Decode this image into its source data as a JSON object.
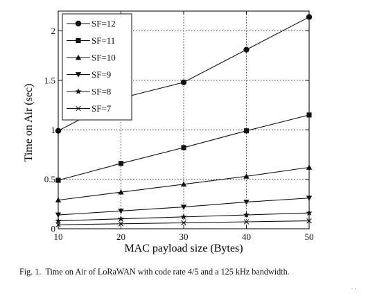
{
  "chart_data": {
    "type": "line",
    "xlabel": "MAC payload size (Bytes)",
    "ylabel": "Time on Air (sec)",
    "x": [
      10,
      20,
      30,
      40,
      50
    ],
    "xlim": [
      10,
      50
    ],
    "ylim": [
      0,
      2.2
    ],
    "xticks": [
      "10",
      "20",
      "30",
      "40",
      "50"
    ],
    "yticks": [
      {
        "value": 0,
        "label": "0"
      },
      {
        "value": 0.5,
        "label": "0.5"
      },
      {
        "value": 1,
        "label": "1"
      },
      {
        "value": 1.5,
        "label": "1.5"
      },
      {
        "value": 2,
        "label": "2"
      }
    ],
    "grid": true,
    "legend_position": "top-left",
    "series": [
      {
        "name": "SF=12",
        "marker": "circle",
        "values": [
          0.99,
          1.32,
          1.48,
          1.81,
          2.14
        ]
      },
      {
        "name": "SF=11",
        "marker": "square",
        "values": [
          0.49,
          0.66,
          0.82,
          0.99,
          1.15
        ]
      },
      {
        "name": "SF=10",
        "marker": "triangle-up",
        "values": [
          0.29,
          0.37,
          0.45,
          0.53,
          0.62
        ]
      },
      {
        "name": "SF=9",
        "marker": "triangle-down",
        "values": [
          0.14,
          0.18,
          0.22,
          0.27,
          0.31
        ]
      },
      {
        "name": "SF=8",
        "marker": "star",
        "values": [
          0.08,
          0.1,
          0.12,
          0.14,
          0.16
        ]
      },
      {
        "name": "SF=7",
        "marker": "x",
        "values": [
          0.04,
          0.05,
          0.06,
          0.07,
          0.08
        ]
      }
    ]
  },
  "caption": {
    "label": "Fig. 1.",
    "text": "Time on Air of LoRaWAN with code rate 4/5 and a 125 kHz bandwidth."
  },
  "colors": {
    "line": "#111111",
    "grid": "#333333"
  }
}
